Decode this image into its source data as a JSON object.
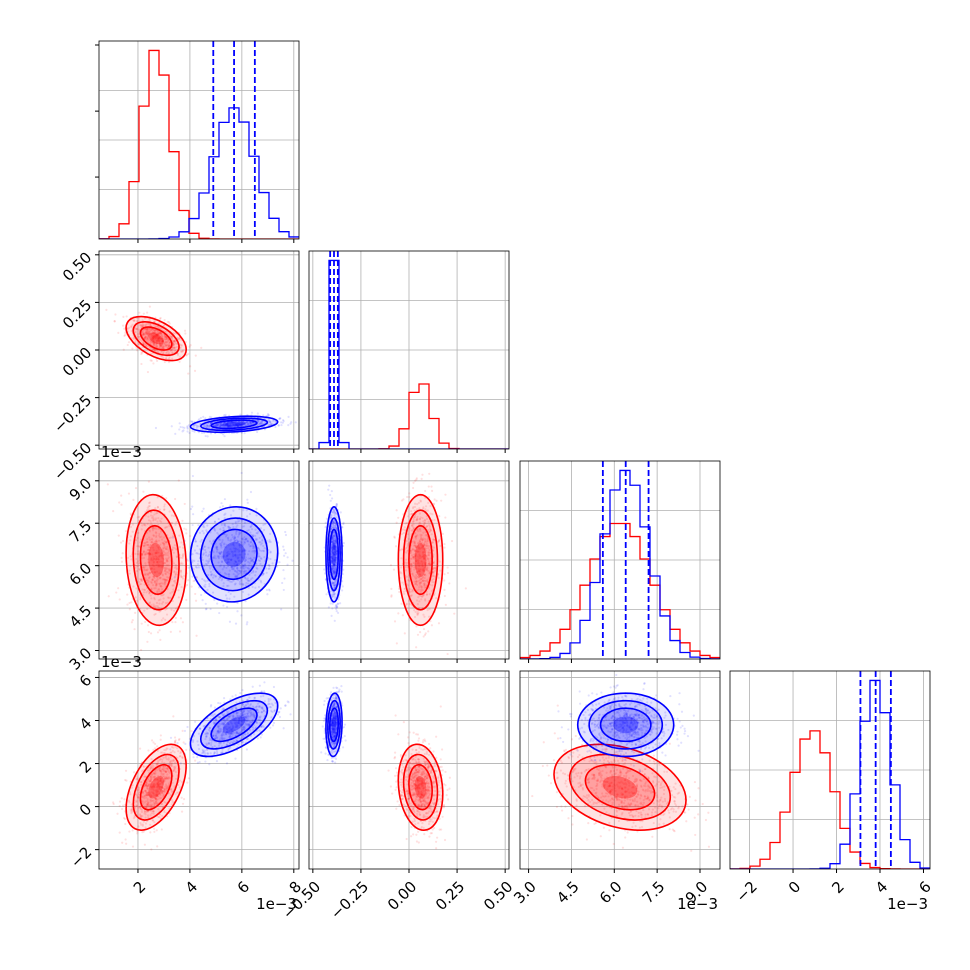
{
  "chart_data": {
    "type": "corner",
    "colors": {
      "red": "#ff0000",
      "blue": "#0000ff",
      "grid": "#b0b0b0",
      "axis": "#000000"
    },
    "params": [
      {
        "id": "p0",
        "range": [
          0.5,
          8.2
        ],
        "ticks": [
          2,
          4,
          6,
          8
        ],
        "ticklabels": [
          "2",
          "4",
          "6",
          "8"
        ],
        "offset": "1e−3"
      },
      {
        "id": "p1",
        "range": [
          -0.52,
          0.52
        ],
        "ticks": [
          -0.5,
          -0.25,
          0,
          0.25,
          0.5
        ],
        "ticklabels": [
          "−0.50",
          "−0.25",
          "0.00",
          "0.25",
          "0.50"
        ],
        "offset": ""
      },
      {
        "id": "p2",
        "range": [
          0.0027,
          0.0097
        ],
        "ticks": [
          0.003,
          0.0045,
          0.006,
          0.0075,
          0.009
        ],
        "ticklabels": [
          "3.0",
          "4.5",
          "6.0",
          "7.5",
          "9.0"
        ],
        "offset": "1e−3"
      },
      {
        "id": "p3",
        "range": [
          -2.9,
          6.3
        ],
        "ticks": [
          -2,
          0,
          2,
          4,
          6
        ],
        "ticklabels": [
          "−2",
          "0",
          "2",
          "4",
          "6"
        ],
        "offset": "1e−3"
      }
    ],
    "series": [
      {
        "name": "red",
        "color": "#ff0000",
        "mean": [
          2.7,
          0.06,
          0.0062,
          0.9
        ],
        "std": [
          0.55,
          0.055,
          0.0011,
          0.95
        ],
        "corr": [
          [
            1,
            -0.5,
            -0.1,
            0.5
          ],
          [
            -0.5,
            1,
            0,
            -0.15
          ],
          [
            -0.1,
            0,
            1,
            -0.3
          ],
          [
            0.5,
            -0.15,
            -0.3,
            1
          ]
        ]
      },
      {
        "name": "blue",
        "color": "#0000ff",
        "mean": [
          5.7,
          -0.39,
          0.0064,
          3.8
        ],
        "std": [
          0.8,
          0.02,
          0.0008,
          0.7
        ],
        "corr": [
          [
            1,
            0.3,
            0.05,
            0.6
          ],
          [
            0.3,
            1,
            0,
            0.1
          ],
          [
            0.05,
            0,
            1,
            0
          ],
          [
            0.6,
            0.1,
            0,
            1
          ]
        ]
      }
    ],
    "quantile_lines": [
      {
        "param": 0,
        "values": [
          4.9,
          5.7,
          6.5
        ]
      },
      {
        "param": 1,
        "values": [
          -0.41,
          -0.39,
          -0.37
        ]
      },
      {
        "param": 2,
        "values": [
          0.0056,
          0.0064,
          0.0072
        ]
      },
      {
        "param": 3,
        "values": [
          3.1,
          3.8,
          4.5
        ]
      }
    ],
    "grid": true,
    "legend": "none"
  }
}
